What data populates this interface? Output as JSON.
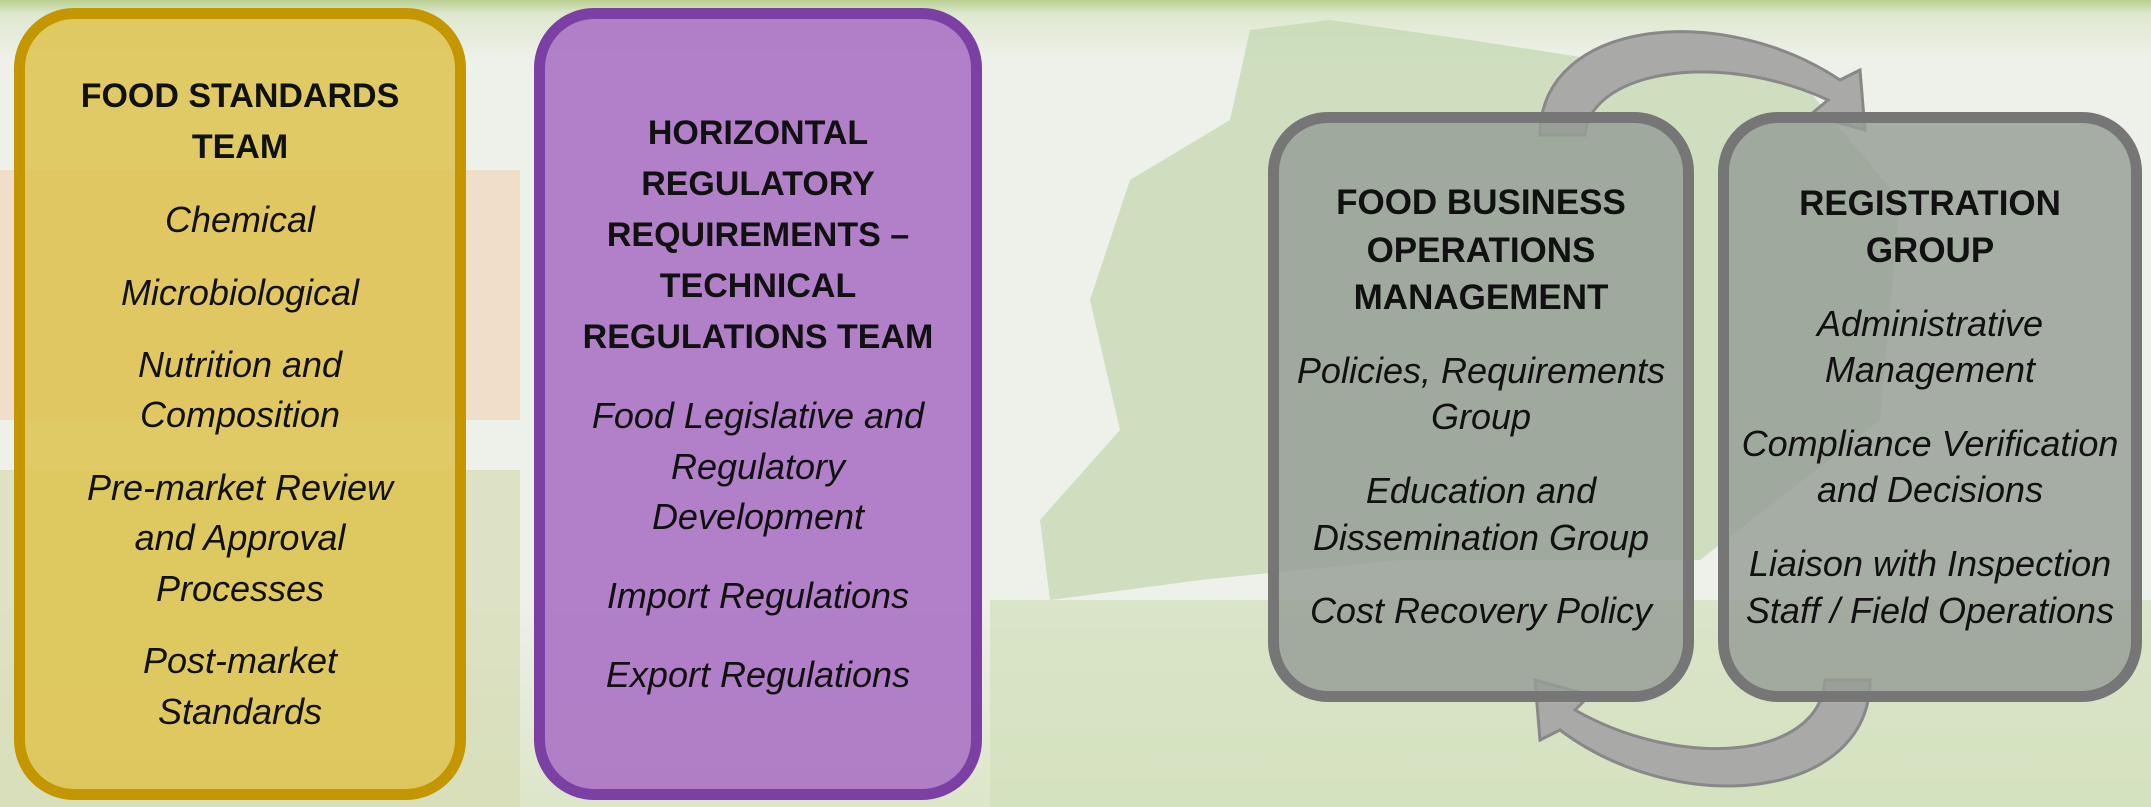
{
  "boxes": [
    {
      "title": "FOOD STANDARDS TEAM",
      "items": [
        "Chemical",
        "Microbiological",
        "Nutrition and Composition",
        "Pre-market Review and Approval Processes",
        "Post-market Standards"
      ]
    },
    {
      "title": "HORIZONTAL REGULATORY REQUIREMENTS – TECHNICAL REGULATIONS TEAM",
      "items": [
        "Food Legislative and Regulatory Development",
        "Import Regulations",
        "Export Regulations"
      ]
    },
    {
      "title": "FOOD BUSINESS OPERATIONS MANAGEMENT",
      "items": [
        "Policies, Requirements Group",
        "Education and Dissemination Group",
        "Cost Recovery Policy"
      ]
    },
    {
      "title": "REGISTRATION GROUP",
      "items": [
        "Administrative Management",
        "Compliance Verification and Decisions",
        "Liaison with Inspection Staff / Field Operations"
      ]
    }
  ]
}
